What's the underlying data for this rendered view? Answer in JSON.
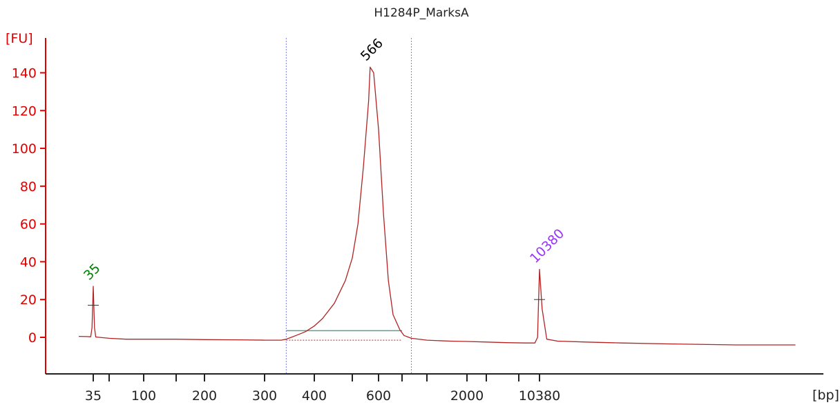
{
  "chart_data": {
    "type": "line",
    "title": "H1284P_MarksA",
    "ylabel": "[FU]",
    "xlabel": "[bp]",
    "ylim": [
      -20,
      150
    ],
    "yticks": [
      0,
      20,
      40,
      60,
      80,
      100,
      120,
      140
    ],
    "xticks": [
      {
        "pos": 35,
        "label": "35"
      },
      {
        "pos": 50,
        "label": ""
      },
      {
        "pos": 100,
        "label": "100"
      },
      {
        "pos": 150,
        "label": ""
      },
      {
        "pos": 200,
        "label": "200"
      },
      {
        "pos": 300,
        "label": "300"
      },
      {
        "pos": 400,
        "label": "400"
      },
      {
        "pos": 500,
        "label": ""
      },
      {
        "pos": 600,
        "label": "600"
      },
      {
        "pos": 700,
        "label": ""
      },
      {
        "pos": 1000,
        "label": ""
      },
      {
        "pos": 2000,
        "label": "2000"
      },
      {
        "pos": 3000,
        "label": ""
      },
      {
        "pos": 7000,
        "label": ""
      },
      {
        "pos": 10380,
        "label": "10380"
      }
    ],
    "series": [
      {
        "color": "#b22222",
        "x": [
          25,
          30,
          33,
          34,
          35,
          36,
          37,
          40,
          50,
          70,
          100,
          150,
          200,
          250,
          300,
          330,
          340,
          350,
          360,
          380,
          400,
          420,
          450,
          480,
          500,
          520,
          540,
          560,
          566,
          580,
          600,
          620,
          640,
          660,
          690,
          720,
          800,
          1000,
          1500,
          2000,
          3000,
          5000,
          8000,
          9500,
          10000,
          10200,
          10380,
          10600,
          11000,
          12000,
          15000,
          20000,
          30000,
          50000,
          80000
        ],
        "y": [
          0.5,
          0.4,
          0.3,
          5,
          27,
          5,
          0.2,
          0,
          -0.5,
          -1,
          -1,
          -1,
          -1.2,
          -1.3,
          -1.5,
          -1.5,
          -1,
          0,
          1,
          3,
          6,
          10,
          18,
          30,
          42,
          60,
          90,
          125,
          143,
          140,
          110,
          65,
          30,
          12,
          4,
          1,
          -0.5,
          -1.5,
          -2,
          -2.2,
          -2.5,
          -2.8,
          -3,
          -3,
          0,
          20,
          36,
          15,
          -1,
          -2,
          -2.5,
          -3,
          -3.5,
          -4,
          -4
        ]
      }
    ],
    "peaks": [
      {
        "x": 35,
        "label": "35",
        "color": "#008000",
        "marker_y": 17
      },
      {
        "x": 566,
        "label": "566",
        "color": "#000000"
      },
      {
        "x": 10380,
        "label": "10380",
        "color": "#9933ff",
        "marker_y": 20
      }
    ],
    "region": {
      "from": 340,
      "to": 800,
      "line_color": "#7a7aff"
    },
    "integration": {
      "from": 340,
      "to": 700,
      "y": 3.5,
      "color": "#5f9e8f"
    },
    "grid": false
  }
}
